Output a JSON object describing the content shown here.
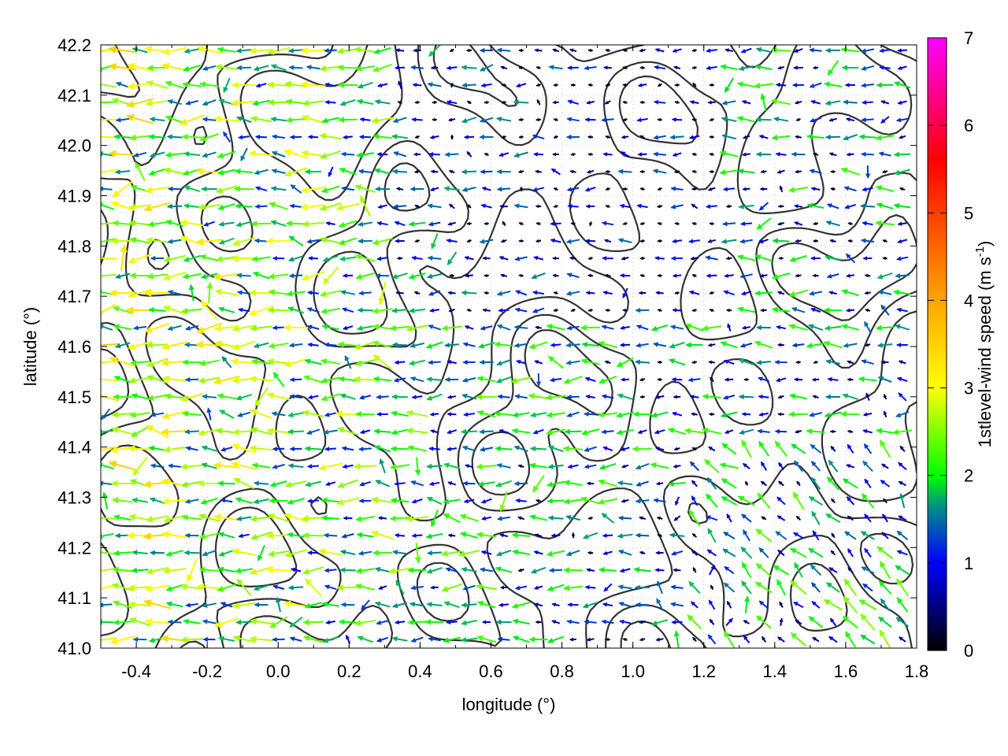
{
  "chart_data": {
    "type": "vector-field",
    "xlabel": "longitude (°)",
    "ylabel": "latitude (°)",
    "xlim": [
      -0.5,
      1.8
    ],
    "ylim": [
      41.0,
      42.2
    ],
    "x_ticks": [
      "-0.4",
      "-0.2",
      "0.0",
      "0.2",
      "0.4",
      "0.6",
      "0.8",
      "1.0",
      "1.2",
      "1.4",
      "1.6",
      "1.8"
    ],
    "y_ticks": [
      "41.0",
      "41.1",
      "41.2",
      "41.3",
      "41.4",
      "41.5",
      "41.6",
      "41.7",
      "41.8",
      "41.9",
      "42.0",
      "42.1",
      "42.2"
    ],
    "grid": true,
    "colorbar": {
      "label": "1stlevel-wind speed (m s",
      "label_sup": "-1",
      "label_end": ")",
      "range": [
        0,
        7
      ],
      "ticks": [
        "0",
        "1",
        "2",
        "3",
        "4",
        "5",
        "6",
        "7"
      ],
      "palette": [
        "#000000",
        "#0000ff",
        "#008b8b",
        "#00ff00",
        "#ffff00",
        "#ffa500",
        "#ff0000",
        "#ff00ff"
      ]
    },
    "vectors_summary": "westward winds, ~1-4 m/s, stronger in west and south-east",
    "contour_color": "#333333"
  }
}
